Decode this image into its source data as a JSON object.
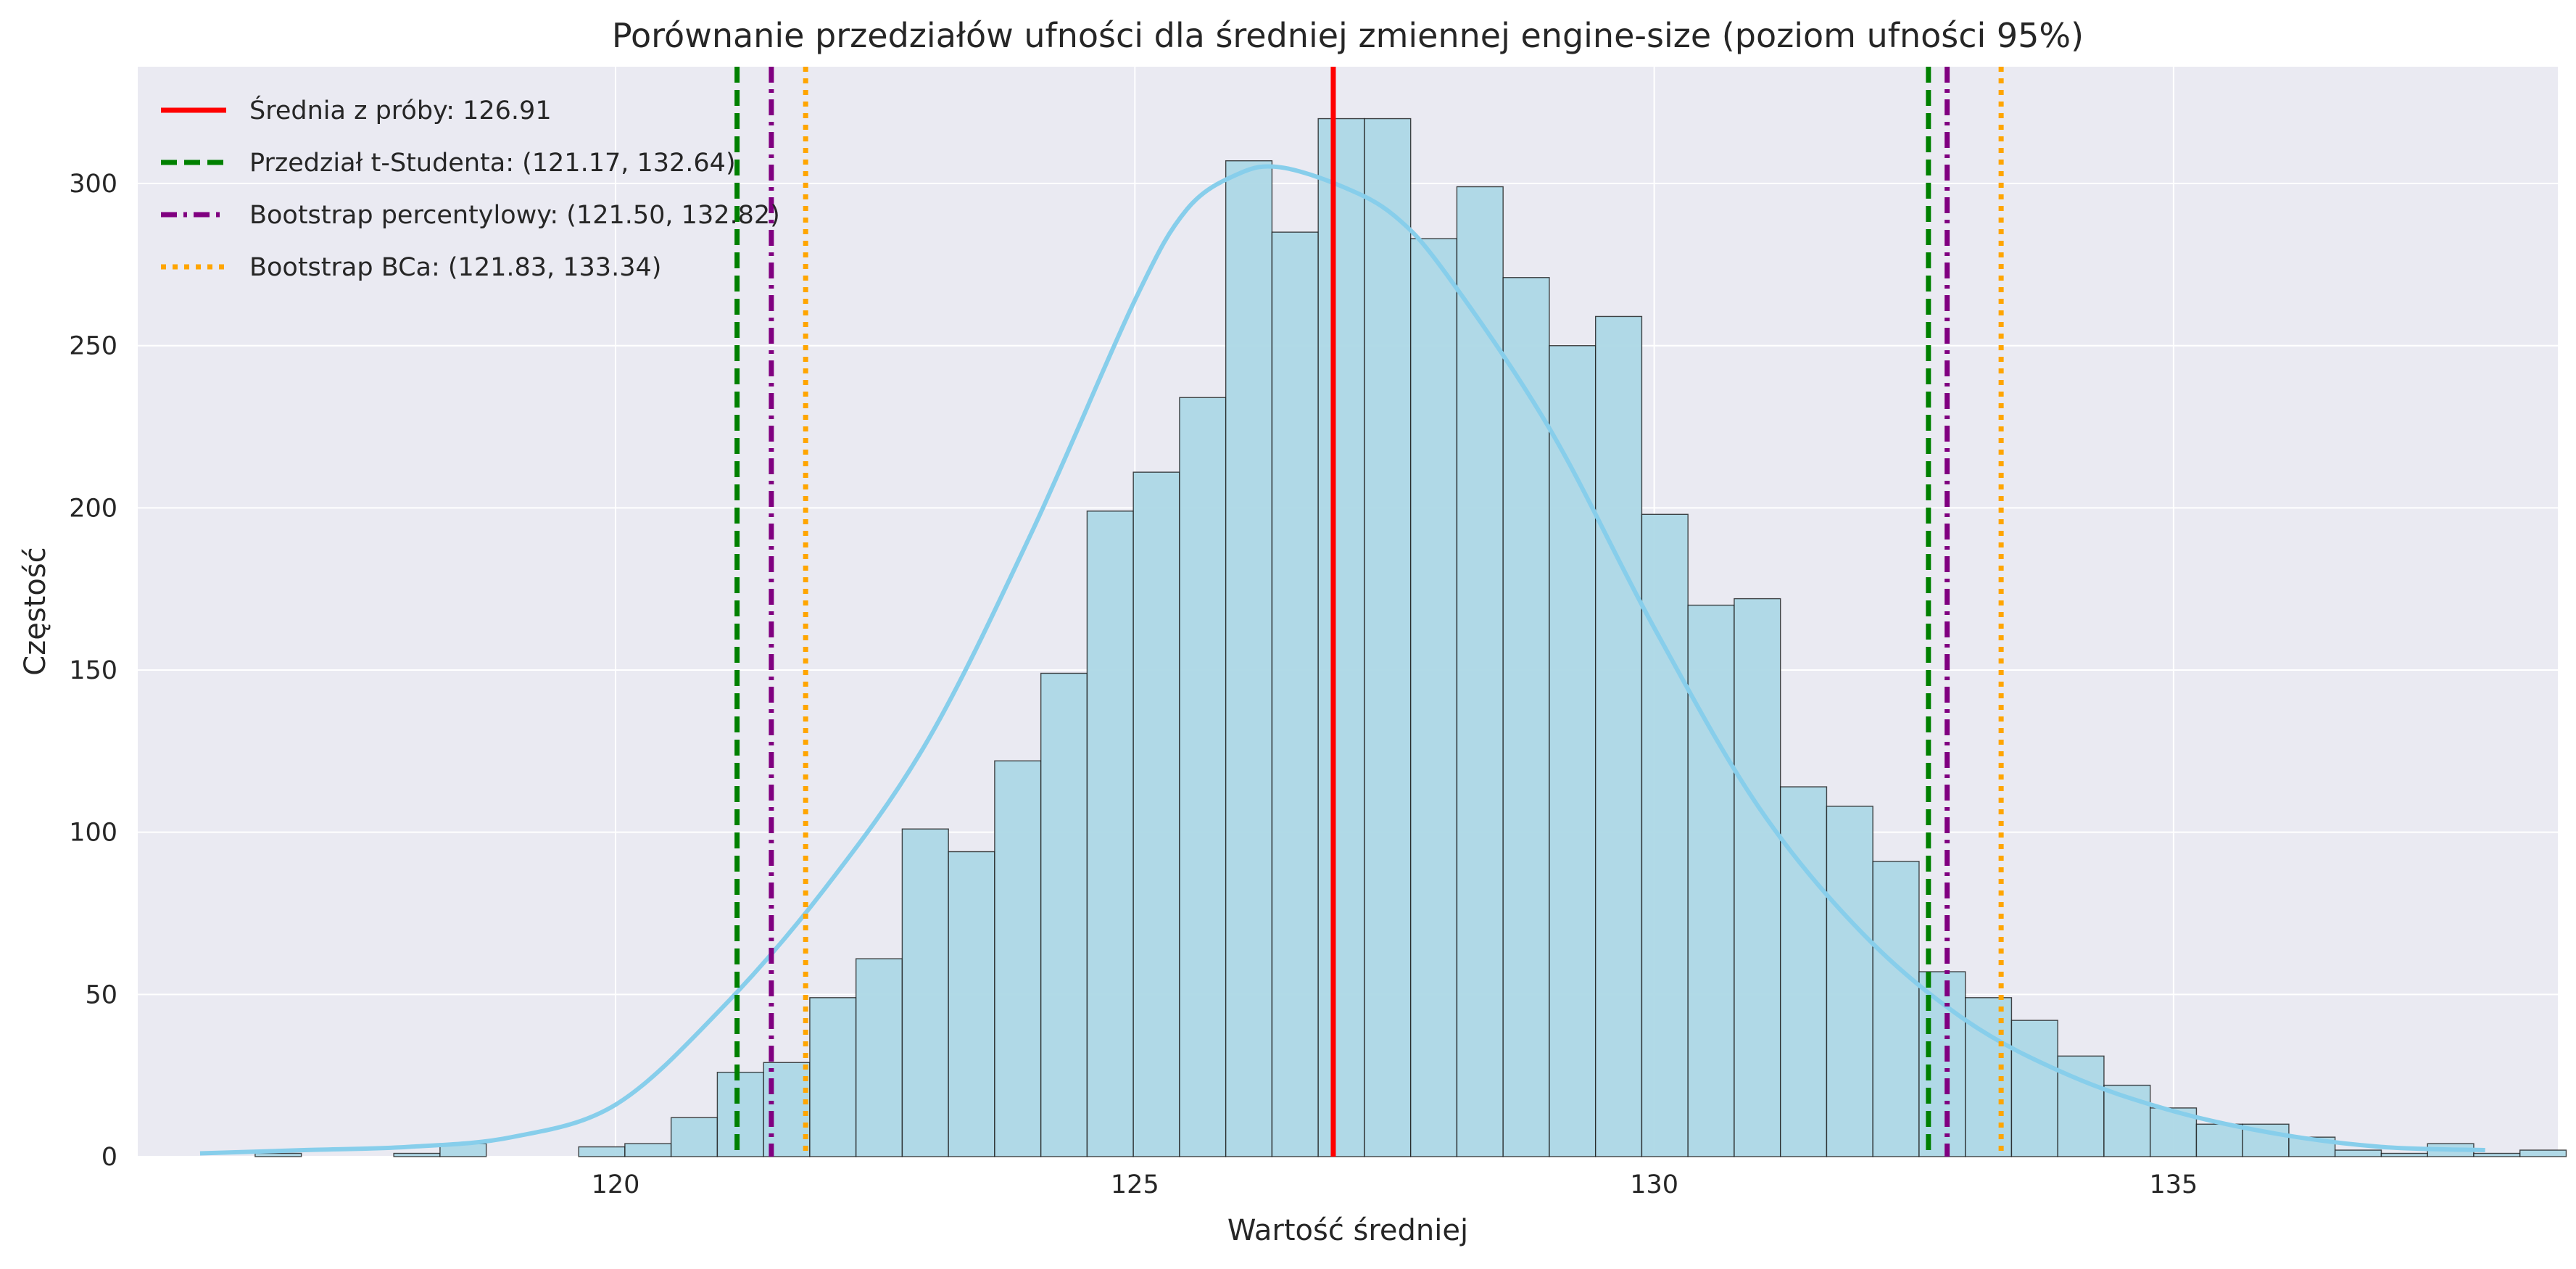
{
  "chart_data": {
    "type": "bar",
    "title": "Porównanie przedziałów ufności dla średniej zmiennej engine-size (poziom ufności 95%)",
    "xlabel": "Wartość średniej",
    "ylabel": "Częstość",
    "xlim": [
      115.4,
      138.7
    ],
    "ylim": [
      0,
      336
    ],
    "xticks": [
      120,
      125,
      130,
      135
    ],
    "yticks": [
      0,
      50,
      100,
      150,
      200,
      250,
      300
    ],
    "grid": true,
    "bins": {
      "start": 116.53,
      "width": 0.445,
      "counts": [
        1,
        0,
        0,
        1,
        4,
        0,
        0,
        3,
        4,
        12,
        26,
        29,
        49,
        61,
        101,
        94,
        122,
        149,
        199,
        211,
        234,
        307,
        285,
        320,
        320,
        283,
        299,
        271,
        250,
        259,
        198,
        170,
        172,
        114,
        108,
        91,
        57,
        49,
        42,
        31,
        22,
        15,
        10,
        10,
        6,
        2,
        1,
        4,
        1,
        2
      ]
    },
    "kde": {
      "x": [
        116.0,
        117.0,
        118.0,
        119.0,
        120.0,
        121.0,
        122.0,
        123.0,
        124.0,
        125.0,
        125.5,
        126.0,
        126.4,
        127.0,
        127.5,
        128.0,
        129.0,
        130.0,
        131.0,
        132.0,
        133.0,
        134.0,
        135.0,
        136.0,
        137.0,
        138.0
      ],
      "y": [
        1,
        2,
        3,
        6,
        16,
        45,
        82,
        128,
        192,
        264,
        292,
        303,
        305,
        299,
        290,
        272,
        224,
        163,
        108,
        69,
        42,
        25,
        14,
        7,
        3,
        2
      ]
    },
    "lines": [
      {
        "name": "Średnia z próby: 126.91",
        "x": [
          126.91
        ],
        "color": "#ff0000",
        "style": "solid"
      },
      {
        "name": "Przedział t-Studenta: (121.17, 132.64)",
        "x": [
          121.17,
          132.64
        ],
        "color": "#008000",
        "style": "dashed"
      },
      {
        "name": "Bootstrap percentylowy: (121.50, 132.82)",
        "x": [
          121.5,
          132.82
        ],
        "color": "#800080",
        "style": "dashdot"
      },
      {
        "name": "Bootstrap BCa: (121.83, 133.34)",
        "x": [
          121.83,
          133.34
        ],
        "color": "#ffa500",
        "style": "dotted"
      }
    ],
    "legend_position": "top-left",
    "colors": {
      "background": "#eaeaf2",
      "grid": "#ffffff",
      "bar_fill": "#add8e6",
      "bar_edge": "#1a1a1a",
      "kde": "#87ceeb"
    }
  }
}
